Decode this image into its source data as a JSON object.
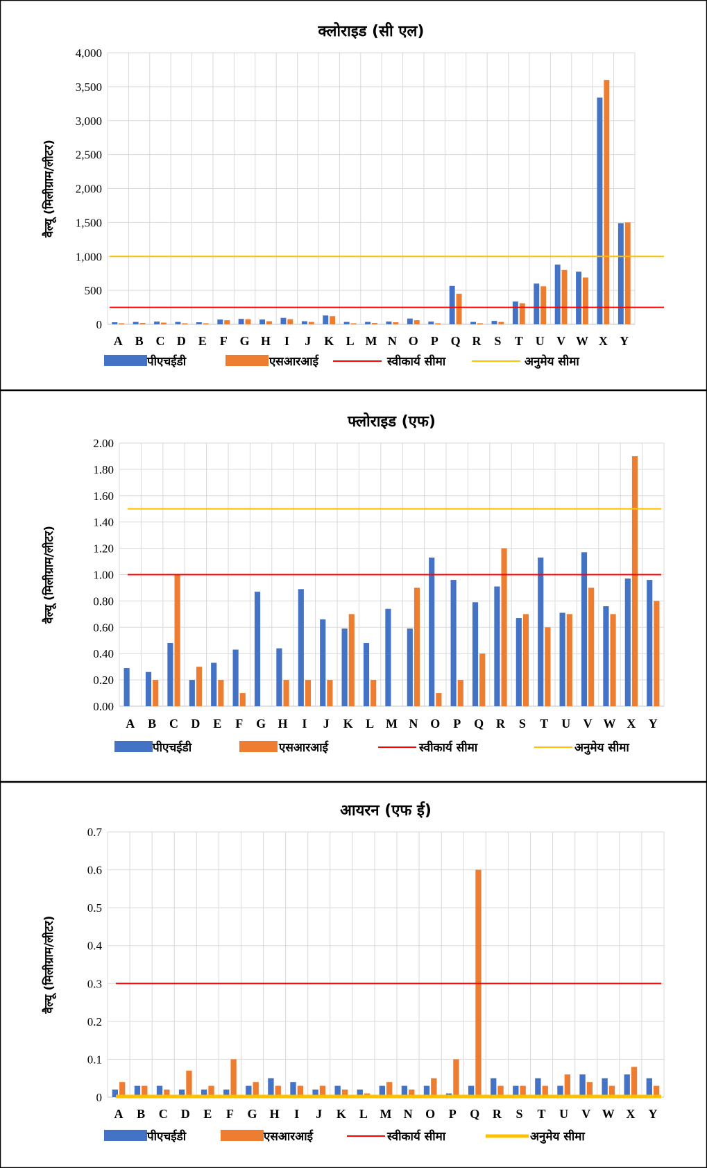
{
  "colors": {
    "phed": "#4472C4",
    "sri": "#ED7D31",
    "acceptable": "#FF0000",
    "permissible": "#FFC000",
    "grid": "#D9D9D9",
    "border": "#000000"
  },
  "legend": {
    "phed": "पीएचईडी",
    "sri": "एसआरआई",
    "acceptable": "स्वीकार्य सीमा",
    "permissible": "अनुमेय सीमा"
  },
  "chart_data": [
    {
      "type": "bar",
      "title": "क्लोराइड (सी एल)",
      "ylabel": "वैल्यू (मिलीग्राम/लीटर)",
      "xlabel": "",
      "categories": [
        "A",
        "B",
        "C",
        "D",
        "E",
        "F",
        "G",
        "H",
        "I",
        "J",
        "K",
        "L",
        "M",
        "N",
        "O",
        "P",
        "Q",
        "R",
        "S",
        "T",
        "U",
        "V",
        "W",
        "X",
        "Y"
      ],
      "yticks": [
        "0",
        "500",
        "1,000",
        "1,500",
        "2,000",
        "2,500",
        "3,000",
        "3,500",
        "4,000"
      ],
      "ylim": [
        0,
        4000
      ],
      "series": [
        {
          "name": "पीएचईडी",
          "values": [
            30,
            35,
            40,
            35,
            30,
            70,
            80,
            70,
            95,
            45,
            130,
            35,
            35,
            40,
            85,
            40,
            565,
            35,
            50,
            335,
            600,
            880,
            775,
            3340,
            1490
          ]
        },
        {
          "name": "एसआरआई",
          "values": [
            15,
            20,
            25,
            15,
            15,
            60,
            75,
            45,
            75,
            35,
            120,
            15,
            20,
            30,
            60,
            15,
            450,
            15,
            35,
            310,
            560,
            800,
            690,
            3600,
            1500
          ]
        }
      ],
      "lines": [
        {
          "name": "स्वीकार्य सीमा",
          "value": 250
        },
        {
          "name": "अनुमेय सीमा",
          "value": 1000
        }
      ],
      "grid": true,
      "legend_position": "bottom"
    },
    {
      "type": "bar",
      "title": "फ्लोराइड (एफ)",
      "ylabel": "वैल्यू (मिलीग्राम/लीटर)",
      "xlabel": "",
      "categories": [
        "A",
        "B",
        "C",
        "D",
        "E",
        "F",
        "G",
        "H",
        "I",
        "J",
        "K",
        "L",
        "M",
        "N",
        "O",
        "P",
        "Q",
        "R",
        "S",
        "T",
        "U",
        "V",
        "W",
        "X",
        "Y"
      ],
      "yticks": [
        "0.00",
        "0.20",
        "0.40",
        "0.60",
        "0.80",
        "1.00",
        "1.20",
        "1.40",
        "1.60",
        "1.80",
        "2.00"
      ],
      "ylim": [
        0,
        2
      ],
      "series": [
        {
          "name": "पीएचईडी",
          "values": [
            0.29,
            0.26,
            0.48,
            0.2,
            0.33,
            0.43,
            0.87,
            0.44,
            0.89,
            0.66,
            0.59,
            0.48,
            0.74,
            0.59,
            1.13,
            0.96,
            0.79,
            0.91,
            0.67,
            1.13,
            0.71,
            1.17,
            0.76,
            0.97,
            0.96
          ]
        },
        {
          "name": "एसआरआई",
          "values": [
            0,
            0.2,
            1.0,
            0.3,
            0.2,
            0.1,
            0,
            0.2,
            0.2,
            0.2,
            0.7,
            0.2,
            0,
            0.9,
            0.1,
            0.2,
            0.4,
            1.2,
            0.7,
            0.6,
            0.7,
            0.9,
            0.7,
            1.9,
            0.8
          ]
        }
      ],
      "lines": [
        {
          "name": "स्वीकार्य सीमा",
          "value": 1.0
        },
        {
          "name": "अनुमेय सीमा",
          "value": 1.5
        }
      ],
      "grid": true,
      "legend_position": "bottom"
    },
    {
      "type": "bar",
      "title": "आयरन (एफ ई)",
      "ylabel": "वैल्यू (मिलीग्राम/लीटर)",
      "xlabel": "",
      "categories": [
        "A",
        "B",
        "C",
        "D",
        "E",
        "F",
        "G",
        "H",
        "I",
        "J",
        "K",
        "L",
        "M",
        "N",
        "O",
        "P",
        "Q",
        "R",
        "S",
        "T",
        "U",
        "V",
        "W",
        "X",
        "Y"
      ],
      "yticks": [
        "0",
        "0.1",
        "0.2",
        "0.3",
        "0.4",
        "0.5",
        "0.6",
        "0.7"
      ],
      "ylim": [
        0,
        0.7
      ],
      "series": [
        {
          "name": "पीएचईडी",
          "values": [
            0.02,
            0.03,
            0.03,
            0.02,
            0.02,
            0.02,
            0.03,
            0.05,
            0.04,
            0.02,
            0.03,
            0.02,
            0.03,
            0.03,
            0.03,
            0.01,
            0.03,
            0.05,
            0.03,
            0.05,
            0.03,
            0.06,
            0.05,
            0.06,
            0.05
          ]
        },
        {
          "name": "एसआरआई",
          "values": [
            0.04,
            0.03,
            0.02,
            0.07,
            0.03,
            0.1,
            0.04,
            0.03,
            0.03,
            0.03,
            0.02,
            0.01,
            0.04,
            0.02,
            0.05,
            0.1,
            0.6,
            0.03,
            0.03,
            0.03,
            0.06,
            0.04,
            0.03,
            0.08,
            0.03
          ]
        }
      ],
      "lines": [
        {
          "name": "स्वीकार्य सीमा",
          "value": 0.3
        },
        {
          "name": "अनुमेय सीमा",
          "value": 0.0
        }
      ],
      "grid": true,
      "legend_position": "bottom"
    }
  ]
}
